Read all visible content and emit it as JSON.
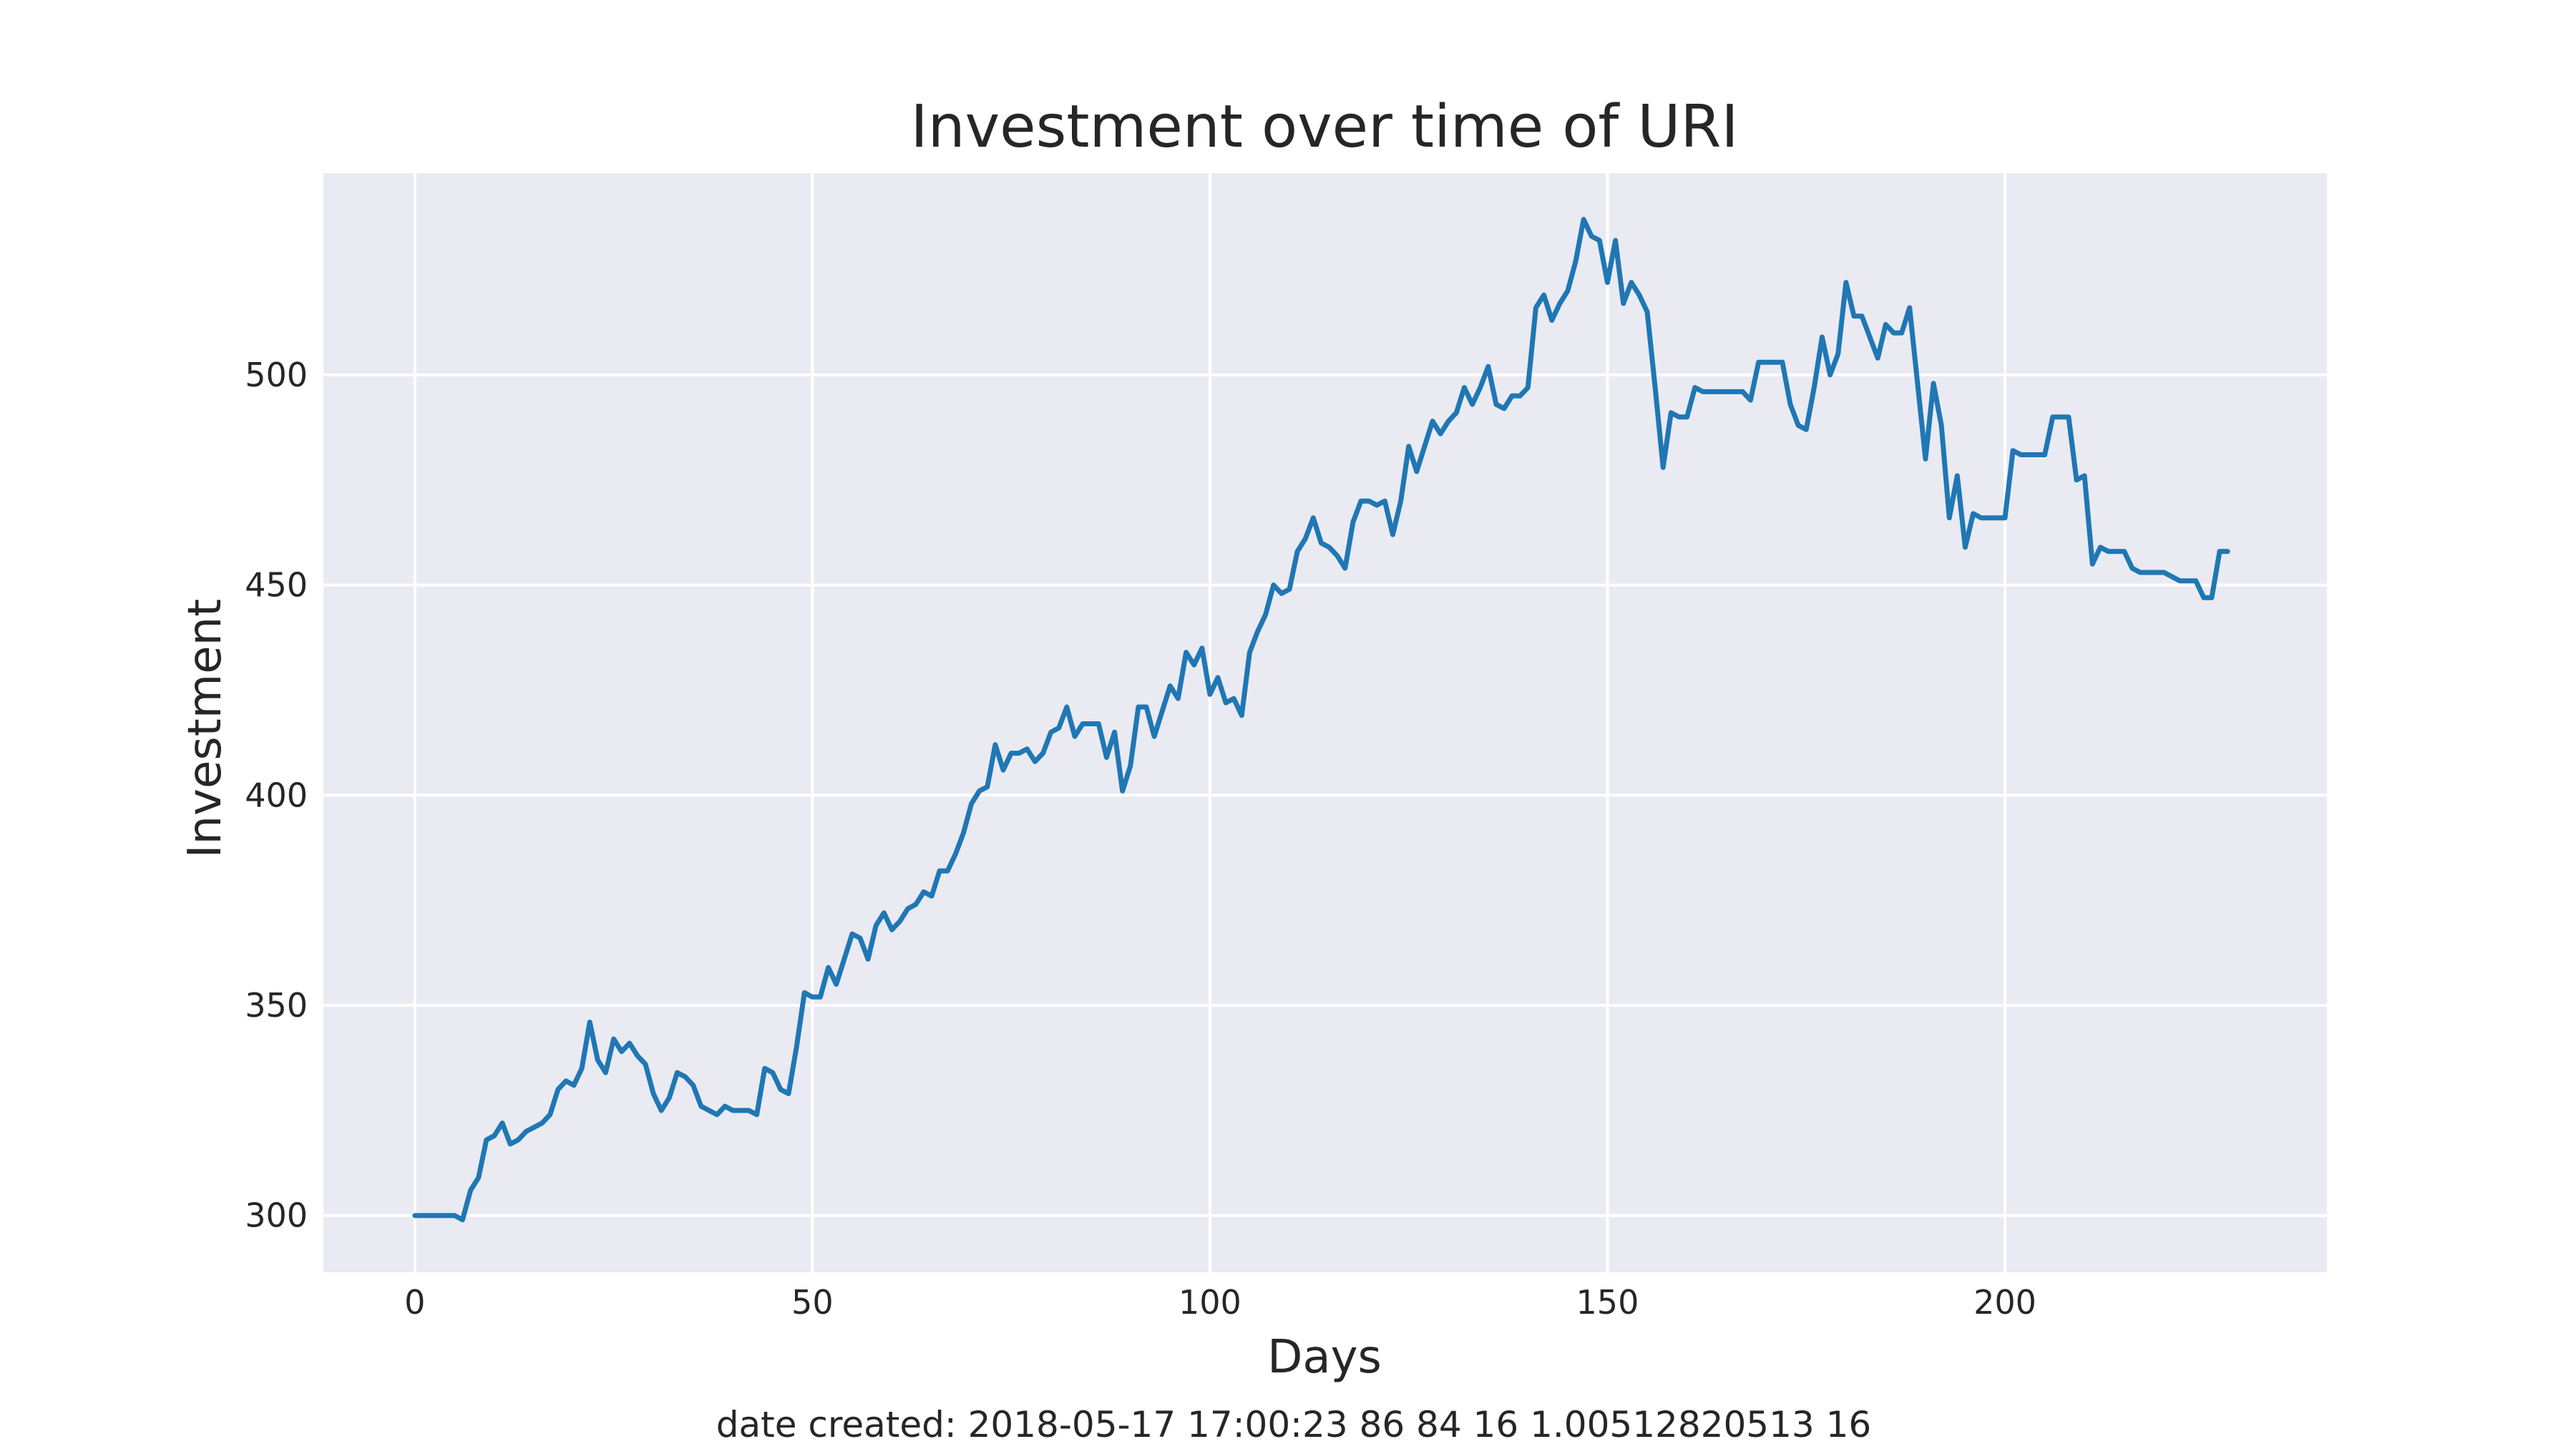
{
  "chart_data": {
    "type": "line",
    "title": "Investment over time of URI",
    "xlabel": "Days",
    "ylabel": "Investment",
    "footer": "date created: 2018-05-17 17:00:23 86 84 16 1.00512820513 16",
    "xlim": [
      -11.5,
      240.5
    ],
    "ylim": [
      286.5,
      548
    ],
    "xticks": [
      0,
      50,
      100,
      150,
      200
    ],
    "yticks": [
      300,
      350,
      400,
      450,
      500
    ],
    "grid": true,
    "background_color": "#eaeaf2",
    "line_color": "#1f77b4",
    "series": [
      {
        "values": [
          300,
          300,
          300,
          300,
          300,
          300,
          299,
          306,
          309,
          318,
          319,
          322,
          317,
          318,
          320,
          321,
          322,
          324,
          330,
          332,
          331,
          335,
          346,
          337,
          334,
          342,
          339,
          341,
          338,
          336,
          329,
          325,
          328,
          334,
          333,
          331,
          326,
          325,
          324,
          326,
          325,
          325,
          325,
          324,
          335,
          334,
          330,
          329,
          340,
          353,
          352,
          352,
          359,
          355,
          361,
          367,
          366,
          361,
          369,
          372,
          368,
          370,
          373,
          374,
          377,
          376,
          382,
          382,
          386,
          391,
          398,
          401,
          402,
          412,
          406,
          410,
          410,
          411,
          408,
          410,
          415,
          416,
          421,
          414,
          417,
          417,
          417,
          409,
          415,
          401,
          407,
          421,
          421,
          414,
          420,
          426,
          423,
          434,
          431,
          435,
          424,
          428,
          422,
          423,
          419,
          434,
          439,
          443,
          450,
          448,
          449,
          458,
          461,
          466,
          460,
          459,
          457,
          454,
          465,
          470,
          470,
          469,
          470,
          462,
          470,
          483,
          477,
          483,
          489,
          486,
          489,
          491,
          497,
          493,
          497,
          502,
          493,
          492,
          495,
          495,
          497,
          516,
          519,
          513,
          517,
          520,
          527,
          537,
          533,
          532,
          522,
          532,
          517,
          522,
          519,
          515,
          497,
          478,
          491,
          490,
          490,
          497,
          496,
          496,
          496,
          496,
          496,
          496,
          494,
          503,
          503,
          503,
          503,
          493,
          488,
          487,
          497,
          509,
          500,
          505,
          522,
          514,
          514,
          509,
          504,
          512,
          510,
          510,
          516,
          498,
          480,
          498,
          488,
          466,
          476,
          459,
          467,
          466,
          466,
          466,
          466,
          482,
          481,
          481,
          481,
          481,
          490,
          490,
          490,
          475,
          476,
          455,
          459,
          458,
          458,
          458,
          454,
          453,
          453,
          453,
          453,
          452,
          451,
          451,
          451,
          447,
          447,
          458,
          458
        ]
      }
    ]
  }
}
